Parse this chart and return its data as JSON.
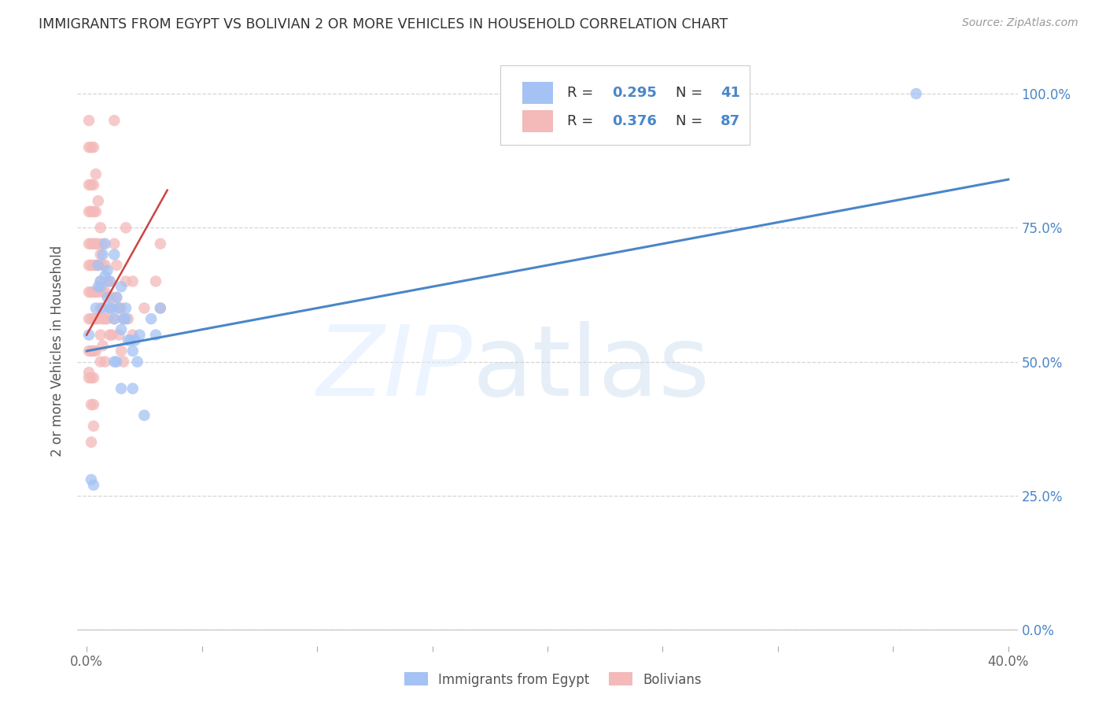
{
  "title": "IMMIGRANTS FROM EGYPT VS BOLIVIAN 2 OR MORE VEHICLES IN HOUSEHOLD CORRELATION CHART",
  "source": "Source: ZipAtlas.com",
  "ylabel": "2 or more Vehicles in Household",
  "legend_r1": "R = 0.295",
  "legend_n1": "N = 41",
  "legend_r2": "R = 0.376",
  "legend_n2": "N = 87",
  "blue_color": "#a4c2f4",
  "pink_color": "#f4b9b9",
  "blue_line_color": "#4a86c8",
  "pink_line_color": "#cc4444",
  "blue_scatter_x": [
    0.001,
    0.002,
    0.003,
    0.004,
    0.005,
    0.006,
    0.007,
    0.008,
    0.009,
    0.01,
    0.011,
    0.012,
    0.013,
    0.014,
    0.015,
    0.016,
    0.017,
    0.018,
    0.02,
    0.022,
    0.025,
    0.03,
    0.005,
    0.006,
    0.007,
    0.008,
    0.009,
    0.01,
    0.012,
    0.015,
    0.017,
    0.019,
    0.021,
    0.023,
    0.028,
    0.032,
    0.012,
    0.013,
    0.015,
    0.02,
    0.36
  ],
  "blue_scatter_y": [
    0.55,
    0.28,
    0.27,
    0.6,
    0.64,
    0.64,
    0.6,
    0.66,
    0.62,
    0.6,
    0.6,
    0.58,
    0.62,
    0.6,
    0.56,
    0.58,
    0.58,
    0.54,
    0.52,
    0.5,
    0.4,
    0.55,
    0.68,
    0.65,
    0.7,
    0.72,
    0.67,
    0.65,
    0.7,
    0.64,
    0.6,
    0.54,
    0.54,
    0.55,
    0.58,
    0.6,
    0.5,
    0.5,
    0.45,
    0.45,
    1.0
  ],
  "pink_scatter_x": [
    0.001,
    0.001,
    0.001,
    0.001,
    0.001,
    0.001,
    0.001,
    0.001,
    0.001,
    0.002,
    0.002,
    0.002,
    0.002,
    0.002,
    0.002,
    0.002,
    0.002,
    0.002,
    0.002,
    0.003,
    0.003,
    0.003,
    0.003,
    0.003,
    0.003,
    0.003,
    0.003,
    0.003,
    0.003,
    0.004,
    0.004,
    0.004,
    0.004,
    0.004,
    0.004,
    0.004,
    0.005,
    0.005,
    0.005,
    0.005,
    0.005,
    0.006,
    0.006,
    0.006,
    0.006,
    0.006,
    0.006,
    0.007,
    0.007,
    0.007,
    0.007,
    0.007,
    0.008,
    0.008,
    0.008,
    0.008,
    0.009,
    0.009,
    0.01,
    0.01,
    0.01,
    0.011,
    0.011,
    0.012,
    0.012,
    0.013,
    0.013,
    0.014,
    0.014,
    0.015,
    0.015,
    0.016,
    0.016,
    0.017,
    0.017,
    0.018,
    0.02,
    0.02,
    0.025,
    0.03,
    0.032,
    0.032,
    0.001,
    0.001,
    0.002,
    0.003,
    0.012
  ],
  "pink_scatter_y": [
    0.9,
    0.83,
    0.78,
    0.72,
    0.68,
    0.63,
    0.58,
    0.52,
    0.47,
    0.9,
    0.83,
    0.78,
    0.72,
    0.68,
    0.63,
    0.58,
    0.52,
    0.47,
    0.42,
    0.9,
    0.83,
    0.78,
    0.72,
    0.68,
    0.63,
    0.58,
    0.52,
    0.47,
    0.42,
    0.85,
    0.78,
    0.72,
    0.68,
    0.63,
    0.58,
    0.52,
    0.8,
    0.72,
    0.68,
    0.63,
    0.58,
    0.75,
    0.7,
    0.65,
    0.6,
    0.55,
    0.5,
    0.72,
    0.68,
    0.63,
    0.58,
    0.53,
    0.68,
    0.63,
    0.58,
    0.5,
    0.65,
    0.58,
    0.65,
    0.6,
    0.55,
    0.62,
    0.55,
    0.72,
    0.58,
    0.68,
    0.62,
    0.6,
    0.55,
    0.6,
    0.52,
    0.58,
    0.5,
    0.75,
    0.65,
    0.58,
    0.65,
    0.55,
    0.6,
    0.65,
    0.72,
    0.6,
    0.95,
    0.48,
    0.35,
    0.38,
    0.95
  ],
  "xlim": [
    0.0,
    0.4
  ],
  "ylim": [
    0.0,
    1.05
  ],
  "x_ticks": [
    0.0,
    0.05,
    0.1,
    0.15,
    0.2,
    0.25,
    0.3,
    0.35,
    0.4
  ],
  "y_ticks": [
    0.0,
    0.25,
    0.5,
    0.75,
    1.0
  ],
  "blue_line_x": [
    0.0,
    0.4
  ],
  "blue_line_y": [
    0.52,
    0.84
  ],
  "pink_line_x": [
    0.0,
    0.035
  ],
  "pink_line_y": [
    0.55,
    0.82
  ]
}
